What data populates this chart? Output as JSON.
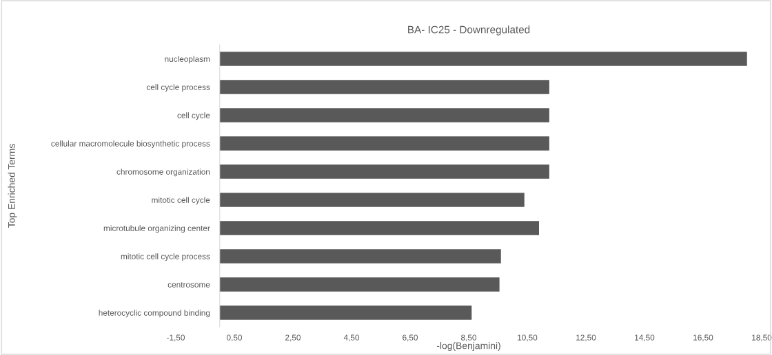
{
  "chart_data": {
    "type": "bar",
    "orientation": "horizontal",
    "title": "BA- IC25 - Downregulated",
    "xlabel": "-log(Benjamini)",
    "ylabel": "Top Enriched Terms",
    "categories": [
      "nucleoplasm",
      "cell cycle process",
      "cell cycle",
      "cellular macromolecule biosynthetic process",
      "chromosome organization",
      "mitotic cell cycle",
      "microtubule organizing center",
      "mitotic cell cycle process",
      "centrosome",
      "heterocyclic compound binding"
    ],
    "values": [
      18.0,
      11.25,
      11.25,
      11.25,
      11.25,
      10.4,
      10.9,
      9.6,
      9.55,
      8.6
    ],
    "color": "#595959",
    "xlim": [
      -1.5,
      18.5
    ],
    "xticks": [
      {
        "value": -1.5,
        "label": "-1,50"
      },
      {
        "value": 0.5,
        "label": "0,50"
      },
      {
        "value": 2.5,
        "label": "2,50"
      },
      {
        "value": 4.5,
        "label": "4,50"
      },
      {
        "value": 6.5,
        "label": "6,50"
      },
      {
        "value": 8.5,
        "label": "8,50"
      },
      {
        "value": 10.5,
        "label": "10,50"
      },
      {
        "value": 12.5,
        "label": "12,50"
      },
      {
        "value": 14.5,
        "label": "14,50"
      },
      {
        "value": 16.5,
        "label": "16,50"
      },
      {
        "value": 18.5,
        "label": "18,50"
      }
    ],
    "grid": false,
    "legend": false
  }
}
